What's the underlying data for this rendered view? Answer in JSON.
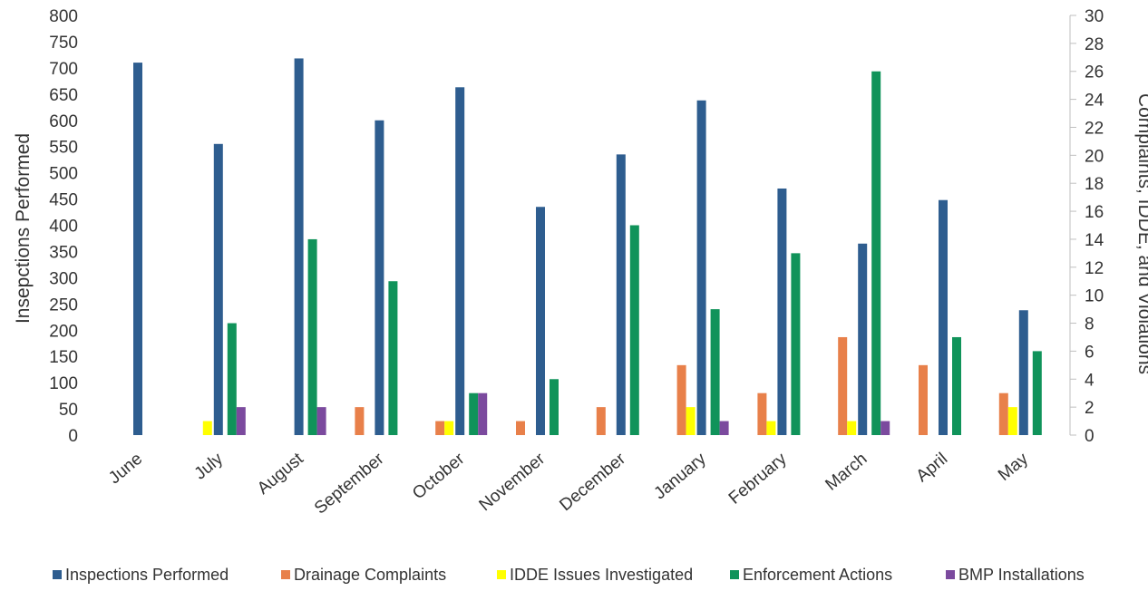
{
  "chart_data": {
    "type": "bar",
    "categories": [
      "June",
      "July",
      "August",
      "September",
      "October",
      "November",
      "December",
      "January",
      "February",
      "March",
      "April",
      "May"
    ],
    "series": [
      {
        "name": "Inspections Performed",
        "axis": "left",
        "color": "#2e5d8f",
        "values": [
          710,
          555,
          718,
          600,
          663,
          435,
          535,
          638,
          470,
          365,
          448,
          238
        ]
      },
      {
        "name": "Drainage Complaints",
        "axis": "right",
        "color": "#e8804a",
        "values": [
          0,
          0,
          0,
          2,
          1,
          1,
          2,
          5,
          3,
          7,
          5,
          3
        ]
      },
      {
        "name": "IDDE Issues Investigated",
        "axis": "right",
        "color": "#ffff00",
        "values": [
          0,
          1,
          0,
          0,
          1,
          0,
          0,
          2,
          1,
          1,
          0,
          2
        ]
      },
      {
        "name": "Enforcement Actions",
        "axis": "right",
        "color": "#10935a",
        "values": [
          0,
          8,
          14,
          11,
          3,
          4,
          15,
          9,
          13,
          26,
          7,
          6
        ]
      },
      {
        "name": "BMP Installations",
        "axis": "right",
        "color": "#7b4a9e",
        "values": [
          0,
          2,
          2,
          0,
          3,
          0,
          0,
          1,
          0,
          1,
          0,
          0
        ]
      }
    ],
    "ylabel": "Insepctions Performed",
    "y2label": "Complaints, IDDE, and Violations",
    "ylim": [
      0,
      800
    ],
    "yticks": [
      0,
      50,
      100,
      150,
      200,
      250,
      300,
      350,
      400,
      450,
      500,
      550,
      600,
      650,
      700,
      750,
      800
    ],
    "y2lim": [
      0,
      30
    ],
    "y2ticks": [
      0,
      2,
      4,
      6,
      8,
      10,
      12,
      14,
      16,
      18,
      20,
      22,
      24,
      26,
      28,
      30
    ],
    "grid": false,
    "legend_position": "bottom"
  }
}
